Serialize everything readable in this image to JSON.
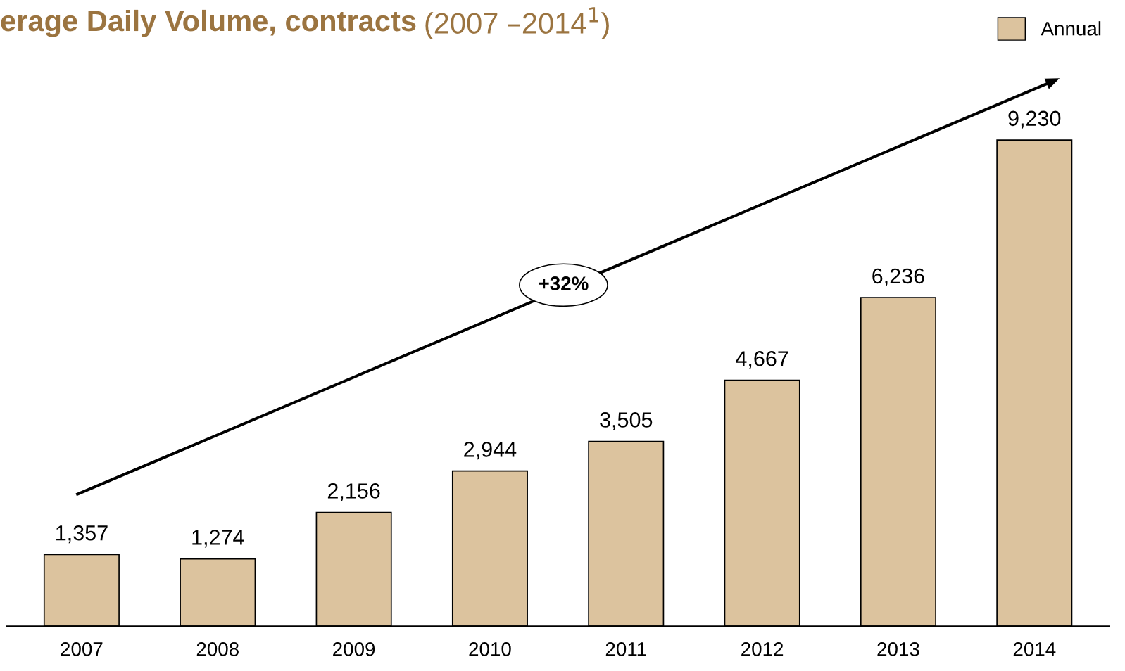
{
  "chart_data": {
    "type": "bar",
    "title": "erage Daily Volume, contracts",
    "subtitle": "(2007 –2014$^{1}$)",
    "categories": [
      "2007",
      "2008",
      "2009",
      "2010",
      "2011",
      "2012",
      "2013",
      "2014"
    ],
    "series": [
      {
        "name": "Annual",
        "color": "#dcc39e",
        "values": [
          1357,
          1274,
          2156,
          2944,
          3505,
          4667,
          6236,
          9230
        ],
        "value_labels": [
          "1,357",
          "1,274",
          "2,156",
          "2,944",
          "3,505",
          "4,667",
          "6,236",
          "9,230"
        ]
      }
    ],
    "annotations": [
      "+32%"
    ],
    "legend": "top right",
    "grid": false
  }
}
